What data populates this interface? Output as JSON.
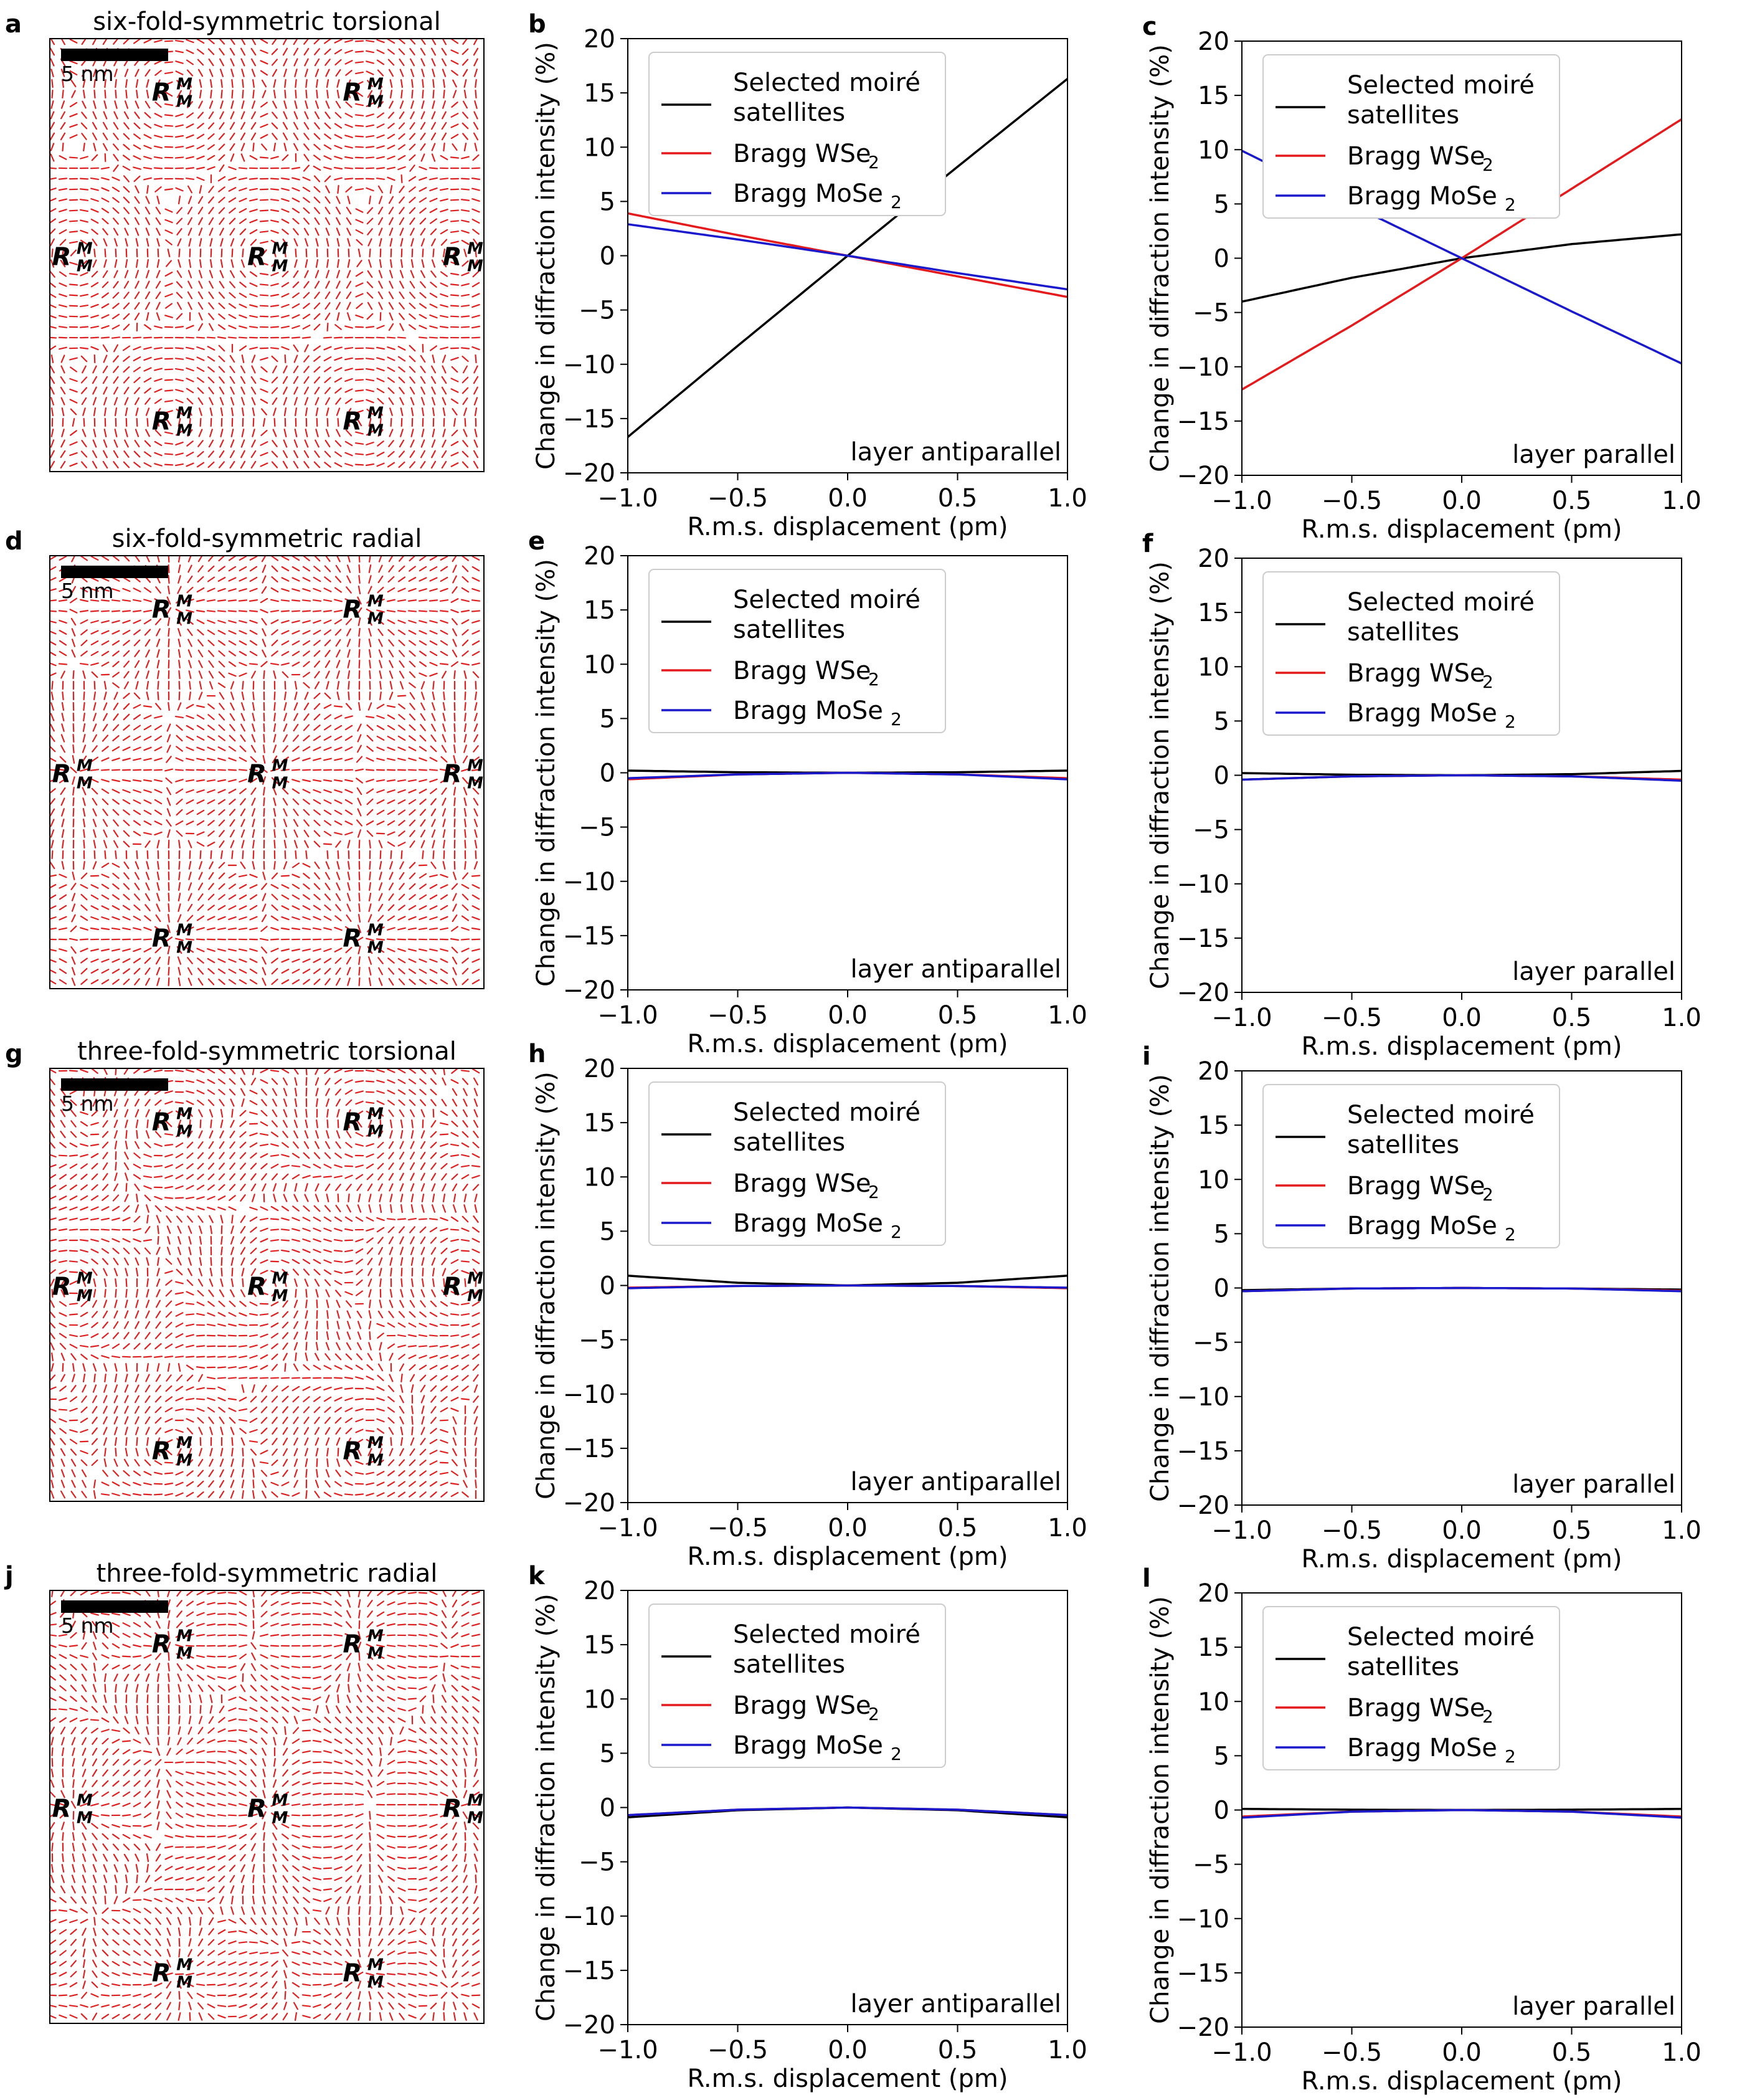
{
  "figure": {
    "scale_bar_label": "5 nm",
    "site_label_main": "R",
    "site_label_sup": "M",
    "site_label_sub": "M",
    "legend": {
      "moire_line1": "Selected moiré",
      "moire_line2": "satellites",
      "bragg_w": "Bragg WSe",
      "bragg_mo": "Bragg MoSe",
      "subscript": "2"
    },
    "colors": {
      "moire": "#000000",
      "wse2": "#e41a1c",
      "mose2": "#1a1acc",
      "quiver": "#e02020"
    }
  },
  "chart_data": [
    {
      "type": "image",
      "panel": "a",
      "title": "six-fold-symmetric torsional",
      "field": "torsional",
      "sites": [
        [
          0.28,
          0.12
        ],
        [
          0.72,
          0.12
        ],
        [
          0.05,
          0.5
        ],
        [
          0.5,
          0.5
        ],
        [
          0.95,
          0.5
        ],
        [
          0.28,
          0.88
        ],
        [
          0.72,
          0.88
        ]
      ]
    },
    {
      "type": "line",
      "panel": "b",
      "note": "layer antiparallel",
      "xlabel": "R.m.s. displacement (pm)",
      "ylabel": "Change in diffraction intensity (%)",
      "xlim": [
        -1,
        1
      ],
      "ylim": [
        -20,
        20
      ],
      "xticks": [
        "−1.0",
        "−0.5",
        "0.0",
        "0.5",
        "1.0"
      ],
      "yticks": [
        "−20",
        "−15",
        "−10",
        "−5",
        "0",
        "5",
        "10",
        "15",
        "20"
      ],
      "x": [
        -1.0,
        -0.5,
        0.0,
        0.5,
        1.0
      ],
      "series": [
        {
          "name": "Selected moiré satellites",
          "values": [
            -16.7,
            -8.3,
            0,
            8.2,
            16.3
          ]
        },
        {
          "name": "Bragg WSe2",
          "values": [
            3.9,
            1.9,
            0,
            -1.9,
            -3.8
          ]
        },
        {
          "name": "Bragg MoSe2",
          "values": [
            2.9,
            1.5,
            0,
            -1.6,
            -3.1
          ]
        }
      ]
    },
    {
      "type": "line",
      "panel": "c",
      "note": "layer parallel",
      "xlabel": "R.m.s. displacement (pm)",
      "ylabel": "Change in diffraction intensity (%)",
      "xlim": [
        -1,
        1
      ],
      "ylim": [
        -20,
        20
      ],
      "xticks": [
        "−1.0",
        "−0.5",
        "0.0",
        "0.5",
        "1.0"
      ],
      "yticks": [
        "−20",
        "−15",
        "−10",
        "−5",
        "0",
        "5",
        "10",
        "15",
        "20"
      ],
      "x": [
        -1.0,
        -0.5,
        0.0,
        0.5,
        1.0
      ],
      "series": [
        {
          "name": "Selected moiré satellites",
          "values": [
            -4.0,
            -1.8,
            0,
            1.3,
            2.2
          ]
        },
        {
          "name": "Bragg WSe2",
          "values": [
            -12.1,
            -6.2,
            0,
            6.4,
            12.8
          ]
        },
        {
          "name": "Bragg MoSe2",
          "values": [
            9.9,
            4.9,
            0,
            -4.9,
            -9.7
          ]
        }
      ]
    },
    {
      "type": "image",
      "panel": "d",
      "title": "six-fold-symmetric radial",
      "field": "radial",
      "sites": [
        [
          0.28,
          0.12
        ],
        [
          0.72,
          0.12
        ],
        [
          0.05,
          0.5
        ],
        [
          0.5,
          0.5
        ],
        [
          0.95,
          0.5
        ],
        [
          0.28,
          0.88
        ],
        [
          0.72,
          0.88
        ]
      ]
    },
    {
      "type": "line",
      "panel": "e",
      "note": "layer antiparallel",
      "xlabel": "R.m.s. displacement (pm)",
      "ylabel": "Change in diffraction intensity (%)",
      "xlim": [
        -1,
        1
      ],
      "ylim": [
        -20,
        20
      ],
      "xticks": [
        "−1.0",
        "−0.5",
        "0.0",
        "0.5",
        "1.0"
      ],
      "yticks": [
        "−20",
        "−15",
        "−10",
        "−5",
        "0",
        "5",
        "10",
        "15",
        "20"
      ],
      "x": [
        -1.0,
        -0.5,
        0.0,
        0.5,
        1.0
      ],
      "series": [
        {
          "name": "Selected moiré satellites",
          "values": [
            0.2,
            0.05,
            0,
            0.05,
            0.2
          ]
        },
        {
          "name": "Bragg WSe2",
          "values": [
            -0.6,
            -0.15,
            0,
            -0.15,
            -0.5
          ]
        },
        {
          "name": "Bragg MoSe2",
          "values": [
            -0.5,
            -0.15,
            0,
            -0.15,
            -0.6
          ]
        }
      ]
    },
    {
      "type": "line",
      "panel": "f",
      "note": "layer parallel",
      "xlabel": "R.m.s. displacement (pm)",
      "ylabel": "Change in diffraction intensity (%)",
      "xlim": [
        -1,
        1
      ],
      "ylim": [
        -20,
        20
      ],
      "xticks": [
        "−1.0",
        "−0.5",
        "0.0",
        "0.5",
        "1.0"
      ],
      "yticks": [
        "−20",
        "−15",
        "−10",
        "−5",
        "0",
        "5",
        "10",
        "15",
        "20"
      ],
      "x": [
        -1.0,
        -0.5,
        0.0,
        0.5,
        1.0
      ],
      "series": [
        {
          "name": "Selected moiré satellites",
          "values": [
            0.2,
            0.05,
            0,
            0.1,
            0.4
          ]
        },
        {
          "name": "Bragg WSe2",
          "values": [
            -0.4,
            -0.1,
            0,
            -0.1,
            -0.4
          ]
        },
        {
          "name": "Bragg MoSe2",
          "values": [
            -0.4,
            -0.1,
            0,
            -0.1,
            -0.5
          ]
        }
      ]
    },
    {
      "type": "image",
      "panel": "g",
      "title": "three-fold-symmetric torsional",
      "field": "torsional3",
      "sites": [
        [
          0.28,
          0.12
        ],
        [
          0.72,
          0.12
        ],
        [
          0.05,
          0.5
        ],
        [
          0.5,
          0.5
        ],
        [
          0.95,
          0.5
        ],
        [
          0.28,
          0.88
        ],
        [
          0.72,
          0.88
        ]
      ]
    },
    {
      "type": "line",
      "panel": "h",
      "note": "layer antiparallel",
      "xlabel": "R.m.s. displacement (pm)",
      "ylabel": "Change in diffraction intensity (%)",
      "xlim": [
        -1,
        1
      ],
      "ylim": [
        -20,
        20
      ],
      "xticks": [
        "−1.0",
        "−0.5",
        "0.0",
        "0.5",
        "1.0"
      ],
      "yticks": [
        "−20",
        "−15",
        "−10",
        "−5",
        "0",
        "5",
        "10",
        "15",
        "20"
      ],
      "x": [
        -1.0,
        -0.5,
        0.0,
        0.5,
        1.0
      ],
      "series": [
        {
          "name": "Selected moiré satellites",
          "values": [
            0.9,
            0.25,
            0,
            0.25,
            0.9
          ]
        },
        {
          "name": "Bragg WSe2",
          "values": [
            -0.2,
            -0.05,
            0,
            -0.05,
            -0.25
          ]
        },
        {
          "name": "Bragg MoSe2",
          "values": [
            -0.25,
            -0.05,
            0,
            -0.05,
            -0.2
          ]
        }
      ]
    },
    {
      "type": "line",
      "panel": "i",
      "note": "layer parallel",
      "xlabel": "R.m.s. displacement (pm)",
      "ylabel": "Change in diffraction intensity (%)",
      "xlim": [
        -1,
        1
      ],
      "ylim": [
        -20,
        20
      ],
      "xticks": [
        "−1.0",
        "−0.5",
        "0.0",
        "0.5",
        "1.0"
      ],
      "yticks": [
        "−20",
        "−15",
        "−10",
        "−5",
        "0",
        "5",
        "10",
        "15",
        "20"
      ],
      "x": [
        -1.0,
        -0.5,
        0.0,
        0.5,
        1.0
      ],
      "series": [
        {
          "name": "Selected moiré satellites",
          "values": [
            -0.2,
            -0.05,
            0,
            -0.05,
            -0.15
          ]
        },
        {
          "name": "Bragg WSe2",
          "values": [
            -0.3,
            -0.05,
            0,
            -0.05,
            -0.25
          ]
        },
        {
          "name": "Bragg MoSe2",
          "values": [
            -0.3,
            -0.05,
            0,
            -0.05,
            -0.3
          ]
        }
      ]
    },
    {
      "type": "image",
      "panel": "j",
      "title": "three-fold-symmetric radial",
      "field": "radial3",
      "sites": [
        [
          0.28,
          0.12
        ],
        [
          0.72,
          0.12
        ],
        [
          0.05,
          0.5
        ],
        [
          0.5,
          0.5
        ],
        [
          0.95,
          0.5
        ],
        [
          0.28,
          0.88
        ],
        [
          0.72,
          0.88
        ]
      ]
    },
    {
      "type": "line",
      "panel": "k",
      "note": "layer antiparallel",
      "xlabel": "R.m.s. displacement (pm)",
      "ylabel": "Change in diffraction intensity (%)",
      "xlim": [
        -1,
        1
      ],
      "ylim": [
        -20,
        20
      ],
      "xticks": [
        "−1.0",
        "−0.5",
        "0.0",
        "0.5",
        "1.0"
      ],
      "yticks": [
        "−20",
        "−15",
        "−10",
        "−5",
        "0",
        "5",
        "10",
        "15",
        "20"
      ],
      "x": [
        -1.0,
        -0.5,
        0.0,
        0.5,
        1.0
      ],
      "series": [
        {
          "name": "Selected moiré satellites",
          "values": [
            -0.9,
            -0.25,
            0,
            -0.25,
            -0.9
          ]
        },
        {
          "name": "Bragg WSe2",
          "values": [
            -0.7,
            -0.2,
            0,
            -0.2,
            -0.7
          ]
        },
        {
          "name": "Bragg MoSe2",
          "values": [
            -0.7,
            -0.2,
            0,
            -0.2,
            -0.7
          ]
        }
      ]
    },
    {
      "type": "line",
      "panel": "l",
      "note": "layer parallel",
      "xlabel": "R.m.s. displacement (pm)",
      "ylabel": "Change in diffraction intensity (%)",
      "xlim": [
        -1,
        1
      ],
      "ylim": [
        -20,
        20
      ],
      "xticks": [
        "−1.0",
        "−0.5",
        "0.0",
        "0.5",
        "1.0"
      ],
      "yticks": [
        "−20",
        "−15",
        "−10",
        "−5",
        "0",
        "5",
        "10",
        "15",
        "20"
      ],
      "x": [
        -1.0,
        -0.5,
        0.0,
        0.5,
        1.0
      ],
      "series": [
        {
          "name": "Selected moiré satellites",
          "values": [
            0.1,
            0.03,
            0,
            0.03,
            0.1
          ]
        },
        {
          "name": "Bragg WSe2",
          "values": [
            -0.6,
            -0.15,
            0,
            -0.15,
            -0.6
          ]
        },
        {
          "name": "Bragg MoSe2",
          "values": [
            -0.7,
            -0.15,
            0,
            -0.15,
            -0.7
          ]
        }
      ]
    }
  ]
}
